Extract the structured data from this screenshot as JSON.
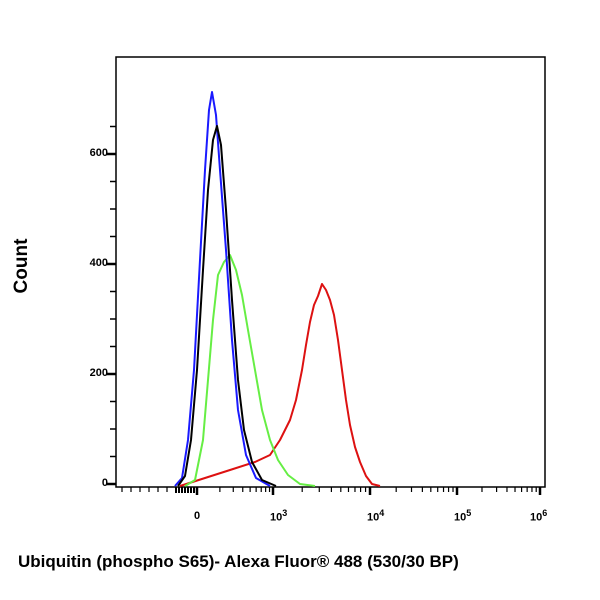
{
  "chart_data": {
    "type": "line",
    "title": "",
    "xlabel": "Ubiquitin (phospho S65)- Alexa Fluor® 488 (530/30 BP)",
    "ylabel": "Count",
    "x_scale": "biexponential (log)",
    "x_tick_labels": [
      "0",
      "10^3",
      "10^4",
      "10^5",
      "10^6"
    ],
    "y_tick_labels": [
      "0",
      "200",
      "400",
      "600"
    ],
    "ylim": [
      0,
      740
    ],
    "grid": false,
    "legend": "none",
    "series": [
      {
        "name": "blue",
        "color": "#1a1aff",
        "peak_x": "~150",
        "peak_y": 715
      },
      {
        "name": "black",
        "color": "#000000",
        "peak_x": "~200",
        "peak_y": 660
      },
      {
        "name": "green",
        "color": "#66ee44",
        "peak_x": "~350",
        "peak_y": 415
      },
      {
        "name": "red",
        "color": "#dd1111",
        "peak_x": "~3000",
        "peak_y": 365
      }
    ]
  },
  "axes": {
    "y_ticks": [
      {
        "label": "0",
        "y": 484
      },
      {
        "label": "200",
        "y": 374
      },
      {
        "label": "400",
        "y": 264
      },
      {
        "label": "600",
        "y": 154
      }
    ],
    "x_ticks": [
      {
        "label": "0",
        "x": 197
      },
      {
        "base": "10",
        "exp": "3",
        "x": 273
      },
      {
        "base": "10",
        "exp": "4",
        "x": 370
      },
      {
        "base": "10",
        "exp": "5",
        "x": 457
      },
      {
        "base": "10",
        "exp": "6",
        "x": 540
      }
    ]
  }
}
